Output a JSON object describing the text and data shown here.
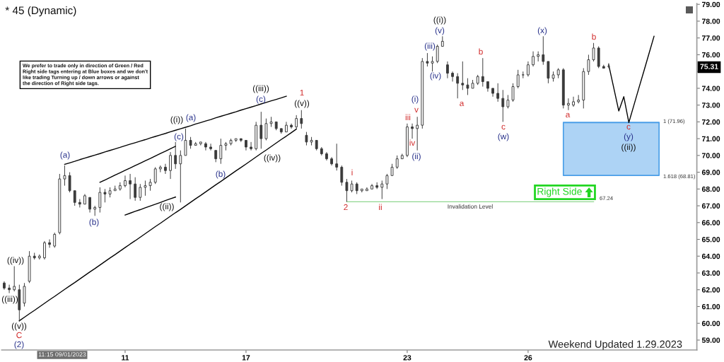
{
  "chart_data": {
    "type": "candlestick",
    "title": "* 45 (Dynamic)",
    "color": "#3a3a3a",
    "categories": [
      null,
      null,
      null,
      null,
      null,
      null,
      null,
      null,
      null,
      null,
      null,
      null,
      null,
      null,
      null,
      null,
      null,
      null,
      null,
      null,
      null,
      null,
      null,
      null,
      "11",
      null,
      null,
      null,
      null,
      null,
      null,
      null,
      null,
      null,
      null,
      null,
      null,
      null,
      null,
      null,
      null,
      null,
      null,
      null,
      null,
      null,
      null,
      null,
      "17",
      null,
      null,
      null,
      null,
      null,
      null,
      null,
      null,
      null,
      null,
      null,
      null,
      null,
      null,
      null,
      null,
      null,
      null,
      null,
      null,
      null,
      null,
      null,
      null,
      null,
      null,
      null,
      null,
      null,
      null,
      null,
      "23",
      null,
      null,
      null,
      null,
      null,
      null,
      null,
      null,
      null,
      null,
      null,
      null,
      null,
      null,
      null,
      null,
      null,
      null,
      null,
      null,
      null,
      null,
      null,
      "26",
      null,
      null,
      null,
      null,
      null,
      null,
      null,
      null,
      null,
      null,
      null,
      null,
      null,
      null,
      null,
      null,
      null,
      null,
      null,
      null,
      null,
      null,
      null,
      null,
      null,
      null,
      null,
      null,
      null,
      null,
      null,
      null,
      null
    ],
    "ohlc": [
      [
        62.4,
        62.5,
        62.0,
        62.1
      ],
      [
        62.1,
        62.3,
        61.8,
        62.0
      ],
      [
        62.0,
        63.4,
        61.9,
        62.2
      ],
      [
        62.0,
        62.3,
        60.1,
        60.8
      ],
      [
        61.2,
        62.4,
        61.0,
        62.2
      ],
      [
        62.5,
        64.3,
        62.4,
        64.0
      ],
      [
        64.0,
        64.2,
        63.8,
        63.9
      ],
      [
        63.9,
        64.1,
        63.8,
        64.0
      ],
      [
        63.9,
        64.9,
        63.8,
        64.8
      ],
      [
        64.8,
        65.0,
        64.5,
        64.7
      ],
      [
        64.6,
        65.4,
        64.5,
        65.3
      ],
      [
        65.4,
        68.9,
        65.3,
        68.6
      ],
      [
        68.6,
        69.4,
        68.2,
        68.8
      ],
      [
        68.8,
        69.0,
        67.8,
        67.9
      ],
      [
        67.9,
        67.9,
        67.0,
        67.2
      ],
      [
        67.2,
        67.4,
        66.9,
        67.1
      ],
      [
        67.1,
        67.7,
        67.1,
        67.6
      ],
      [
        67.5,
        67.5,
        66.6,
        66.8
      ],
      [
        66.8,
        67.0,
        66.4,
        66.9
      ],
      [
        66.9,
        68.1,
        66.6,
        67.8
      ],
      [
        67.8,
        68.0,
        67.2,
        67.7
      ],
      [
        67.7,
        68.1,
        67.5,
        67.9
      ],
      [
        67.9,
        68.2,
        67.9,
        68.0
      ],
      [
        68.0,
        68.4,
        67.9,
        68.2
      ],
      [
        68.2,
        68.8,
        68.1,
        68.5
      ],
      [
        68.5,
        68.9,
        67.4,
        68.3
      ],
      [
        68.3,
        68.7,
        67.3,
        67.5
      ],
      [
        67.5,
        68.3,
        67.3,
        68.1
      ],
      [
        68.1,
        68.5,
        67.6,
        68.2
      ],
      [
        68.2,
        68.6,
        67.9,
        68.4
      ],
      [
        68.4,
        69.3,
        68.3,
        69.2
      ],
      [
        69.2,
        69.4,
        69.0,
        69.3
      ],
      [
        69.3,
        69.5,
        68.9,
        69.1
      ],
      [
        69.1,
        70.2,
        68.6,
        70.0
      ],
      [
        70.0,
        70.8,
        69.2,
        69.5
      ],
      [
        69.5,
        70.3,
        67.2,
        70.0
      ],
      [
        70.0,
        71.6,
        70.0,
        70.9
      ],
      [
        70.9,
        71.1,
        70.4,
        70.6
      ],
      [
        70.6,
        70.8,
        70.6,
        70.7
      ],
      [
        70.7,
        70.8,
        70.6,
        70.8
      ],
      [
        70.7,
        70.8,
        70.3,
        70.5
      ],
      [
        70.5,
        70.7,
        70.3,
        70.4
      ],
      [
        70.3,
        70.3,
        69.6,
        69.8
      ],
      [
        69.8,
        71.0,
        69.5,
        70.6
      ],
      [
        70.6,
        70.8,
        70.3,
        70.7
      ],
      [
        70.7,
        71.0,
        70.6,
        70.9
      ],
      [
        70.9,
        71.0,
        70.8,
        71.0
      ],
      [
        71.0,
        71.0,
        70.8,
        70.9
      ],
      [
        70.9,
        70.9,
        70.3,
        70.5
      ],
      [
        70.5,
        70.8,
        70.3,
        70.4
      ],
      [
        70.4,
        72.0,
        70.3,
        71.8
      ],
      [
        71.8,
        72.6,
        70.4,
        71.0
      ],
      [
        71.0,
        72.2,
        70.9,
        71.9
      ],
      [
        71.9,
        72.3,
        71.7,
        72.0
      ],
      [
        72.0,
        72.0,
        71.5,
        71.6
      ],
      [
        71.6,
        71.6,
        71.3,
        71.4
      ],
      [
        71.4,
        72.0,
        71.4,
        71.8
      ],
      [
        71.8,
        71.9,
        71.6,
        71.7
      ],
      [
        71.7,
        72.4,
        71.6,
        72.2
      ],
      [
        72.2,
        72.7,
        71.6,
        71.9
      ],
      [
        71.2,
        71.4,
        70.6,
        70.8
      ],
      [
        70.8,
        71.1,
        70.6,
        70.9
      ],
      [
        70.9,
        70.9,
        70.3,
        70.4
      ],
      [
        70.4,
        70.5,
        70.0,
        70.1
      ],
      [
        70.1,
        70.2,
        69.7,
        69.8
      ],
      [
        69.8,
        69.9,
        69.4,
        69.5
      ],
      [
        69.5,
        70.7,
        69.1,
        69.3
      ],
      [
        69.3,
        69.4,
        68.2,
        68.4
      ],
      [
        68.4,
        68.6,
        67.24,
        67.9
      ],
      [
        67.9,
        68.5,
        67.8,
        68.3
      ],
      [
        68.3,
        68.4,
        67.7,
        67.9
      ],
      [
        67.9,
        68.0,
        67.8,
        68.0
      ],
      [
        67.9,
        68.1,
        67.9,
        68.0
      ],
      [
        68.0,
        68.3,
        68.0,
        68.2
      ],
      [
        68.2,
        68.4,
        68.0,
        68.1
      ],
      [
        68.1,
        68.5,
        67.4,
        68.3
      ],
      [
        68.3,
        68.9,
        68.0,
        68.8
      ],
      [
        68.8,
        69.5,
        68.8,
        69.3
      ],
      [
        69.3,
        70.0,
        69.2,
        69.8
      ],
      [
        69.8,
        70.1,
        69.8,
        70.0
      ],
      [
        70.0,
        71.9,
        69.9,
        71.7
      ],
      [
        71.7,
        71.9,
        71.0,
        71.6
      ],
      [
        71.6,
        72.3,
        70.3,
        71.8
      ],
      [
        71.8,
        75.8,
        71.6,
        75.6
      ],
      [
        75.6,
        76.1,
        75.3,
        75.5
      ],
      [
        75.5,
        75.9,
        75.0,
        75.6
      ],
      [
        75.6,
        76.6,
        75.5,
        76.5
      ],
      [
        76.5,
        77.1,
        76.5,
        76.8
      ],
      [
        75.4,
        75.6,
        74.6,
        74.9
      ],
      [
        74.9,
        75.0,
        74.4,
        74.7
      ],
      [
        74.7,
        74.9,
        73.4,
        74.3
      ],
      [
        74.3,
        75.6,
        73.9,
        74.2
      ],
      [
        74.2,
        74.6,
        73.6,
        74.0
      ],
      [
        74.0,
        74.5,
        74.0,
        74.3
      ],
      [
        74.3,
        74.8,
        74.2,
        74.7
      ],
      [
        74.7,
        75.8,
        74.1,
        74.4
      ],
      [
        74.4,
        74.4,
        73.8,
        74.0
      ],
      [
        74.0,
        74.0,
        73.5,
        73.7
      ],
      [
        73.7,
        74.3,
        73.2,
        73.4
      ],
      [
        73.4,
        73.9,
        72.0,
        72.9
      ],
      [
        72.9,
        73.6,
        72.8,
        73.3
      ],
      [
        73.3,
        74.3,
        73.2,
        74.1
      ],
      [
        74.1,
        75.1,
        74.0,
        74.8
      ],
      [
        74.8,
        75.0,
        74.6,
        74.8
      ],
      [
        74.8,
        75.6,
        74.7,
        75.4
      ],
      [
        75.4,
        76.2,
        75.3,
        75.9
      ],
      [
        75.9,
        76.2,
        75.6,
        76.0
      ],
      [
        76.0,
        77.1,
        75.4,
        75.6
      ],
      [
        75.6,
        75.6,
        74.3,
        74.6
      ],
      [
        74.6,
        75.0,
        74.4,
        74.8
      ],
      [
        74.8,
        75.2,
        74.6,
        75.1
      ],
      [
        75.1,
        75.2,
        72.8,
        73.0
      ],
      [
        73.0,
        73.4,
        72.7,
        73.1
      ],
      [
        73.0,
        73.5,
        72.9,
        73.2
      ],
      [
        73.2,
        73.6,
        73.1,
        73.3
      ],
      [
        73.3,
        75.2,
        72.8,
        75.0
      ],
      [
        75.0,
        76.0,
        74.8,
        75.7
      ],
      [
        75.7,
        76.7,
        75.6,
        76.4
      ],
      [
        76.4,
        76.5,
        75.2,
        75.3
      ],
      [
        75.3,
        75.4,
        75.2,
        75.2
      ],
      [
        75.3,
        75.5,
        75.2,
        75.31
      ],
      null,
      null,
      null,
      null,
      null,
      null,
      null,
      null,
      null,
      null,
      null,
      null,
      null,
      null,
      null,
      null,
      null
    ],
    "series": [
      {
        "type": "line",
        "color": "#4a9ee8",
        "values": [
          null,
          null,
          null,
          null,
          null,
          null,
          null,
          null,
          null,
          null,
          null,
          null,
          null,
          null,
          null,
          null,
          null,
          null,
          null,
          null,
          null,
          null,
          null,
          null,
          null,
          null,
          null,
          null,
          null,
          null,
          null,
          null,
          null,
          null,
          null,
          null,
          null,
          null,
          null,
          null,
          null,
          null,
          null,
          null,
          null,
          null,
          null,
          null,
          null,
          null,
          null,
          null,
          null,
          null,
          null,
          null,
          null,
          null,
          null,
          null,
          null,
          null,
          null,
          null,
          null,
          null,
          null,
          null,
          null,
          null,
          null,
          null,
          null,
          null,
          null,
          null,
          null,
          null,
          null,
          null,
          null,
          null,
          null,
          null,
          null,
          null,
          null,
          null,
          null,
          null,
          null,
          null,
          null,
          null,
          null,
          null,
          null,
          null,
          null,
          null,
          null,
          null,
          null,
          null,
          null,
          null,
          null,
          null,
          null,
          null,
          null,
          71.96,
          71.96,
          71.96,
          71.96,
          71.96,
          71.96,
          71.96,
          71.96,
          71.96,
          71.96,
          71.96,
          71.96,
          71.96,
          71.96,
          71.96,
          71.96,
          71.96,
          71.96,
          71.96,
          71.96,
          null,
          null,
          null,
          null,
          null,
          null,
          null
        ],
        "upper": [
          null,
          null,
          null,
          null,
          null,
          null,
          null,
          null,
          null,
          null,
          null,
          null,
          null,
          null,
          null,
          null,
          null,
          null,
          null,
          null,
          null,
          null,
          null,
          null,
          null,
          null,
          null,
          null,
          null,
          null,
          null,
          null,
          null,
          null,
          null,
          null,
          null,
          null,
          null,
          null,
          null,
          null,
          null,
          null,
          null,
          null,
          null,
          null,
          null,
          null,
          null,
          null,
          null,
          null,
          null,
          null,
          null,
          null,
          null,
          null,
          null,
          null,
          null,
          null,
          null,
          null,
          null,
          null,
          null,
          null,
          null,
          null,
          null,
          null,
          null,
          null,
          null,
          null,
          null,
          null,
          null,
          null,
          null,
          null,
          null,
          null,
          null,
          null,
          null,
          null,
          null,
          null,
          null,
          null,
          null,
          null,
          null,
          null,
          null,
          null,
          null,
          null,
          null,
          null,
          null,
          null,
          null,
          null,
          null,
          null,
          null,
          71.96,
          71.96,
          71.96,
          71.96,
          71.96,
          71.96,
          71.96,
          71.96,
          71.96,
          71.96,
          71.96,
          71.96,
          71.96,
          71.96,
          71.96,
          71.96,
          71.96,
          71.96,
          71.96,
          71.96,
          null,
          null,
          null,
          null,
          null,
          null,
          null
        ],
        "lower": [
          null,
          null,
          null,
          null,
          null,
          null,
          null,
          null,
          null,
          null,
          null,
          null,
          null,
          null,
          null,
          null,
          null,
          null,
          null,
          null,
          null,
          null,
          null,
          null,
          null,
          null,
          null,
          null,
          null,
          null,
          null,
          null,
          null,
          null,
          null,
          null,
          null,
          null,
          null,
          null,
          null,
          null,
          null,
          null,
          null,
          null,
          null,
          null,
          null,
          null,
          null,
          null,
          null,
          null,
          null,
          null,
          null,
          null,
          null,
          null,
          null,
          null,
          null,
          null,
          null,
          null,
          null,
          null,
          null,
          null,
          null,
          null,
          null,
          null,
          null,
          null,
          null,
          null,
          null,
          null,
          null,
          null,
          null,
          null,
          null,
          null,
          null,
          null,
          null,
          null,
          null,
          null,
          null,
          null,
          null,
          null,
          null,
          null,
          null,
          null,
          null,
          null,
          null,
          null,
          null,
          null,
          null,
          null,
          null,
          null,
          null,
          68.81,
          68.81,
          68.81,
          68.81,
          68.81,
          68.81,
          68.81,
          68.81,
          68.81,
          68.81,
          68.81,
          68.81,
          68.81,
          68.81,
          68.81,
          68.81,
          68.81,
          68.81,
          68.81,
          68.81,
          null,
          null,
          null,
          null,
          null,
          null,
          null
        ]
      },
      {
        "type": "line",
        "color": "#000000",
        "values": [
          null,
          null,
          null,
          null,
          null,
          null,
          null,
          null,
          null,
          null,
          null,
          null,
          69.47,
          69.56,
          69.65,
          69.75,
          69.84,
          69.93,
          70.02,
          70.11,
          70.21,
          70.3,
          70.39,
          70.48,
          70.58,
          70.67,
          70.76,
          70.85,
          70.94,
          71.04,
          71.13,
          71.22,
          71.31,
          71.41,
          71.5,
          71.59,
          71.68,
          71.77,
          71.87,
          71.96,
          72.05,
          72.14,
          72.24,
          72.33,
          72.42,
          72.51,
          72.6,
          72.7,
          72.79,
          72.88,
          72.97,
          73.07,
          73.16,
          73.25,
          73.34,
          73.43,
          73.53,
          null,
          null,
          null,
          null,
          null,
          null,
          null,
          null,
          null,
          null,
          null,
          null,
          null,
          null,
          null,
          null,
          null,
          null,
          null,
          null,
          null,
          null,
          null,
          null,
          null,
          null,
          null,
          null,
          null,
          null,
          null,
          null,
          null,
          null,
          null,
          null,
          null,
          null,
          null,
          null,
          null,
          null,
          null,
          null,
          null,
          null,
          null,
          null,
          null,
          null,
          null,
          null,
          null,
          null,
          null,
          null,
          null,
          null,
          null,
          null,
          null,
          null,
          null,
          null,
          null,
          null,
          null,
          null,
          null,
          null,
          null,
          null,
          null,
          null,
          null,
          null,
          null,
          null,
          null,
          null,
          null
        ]
      },
      {
        "type": "line",
        "color": "#000000",
        "values": [
          null,
          null,
          null,
          null,
          null,
          null,
          null,
          null,
          null,
          null,
          null,
          null,
          null,
          null,
          null,
          null,
          null,
          null,
          null,
          68.4,
          68.54,
          68.68,
          68.83,
          68.97,
          69.11,
          69.25,
          69.4,
          69.54,
          69.68,
          69.82,
          69.97,
          70.11,
          70.25,
          70.4,
          70.54,
          null,
          null,
          null,
          null,
          null,
          null,
          null,
          null,
          null,
          null,
          null,
          null,
          null,
          null,
          null,
          null,
          null,
          null,
          null,
          null,
          null,
          null,
          null,
          null,
          null,
          null,
          null,
          null,
          null,
          null,
          null,
          null,
          null,
          null,
          null,
          null,
          null,
          null,
          null,
          null,
          null,
          null,
          null,
          null,
          null,
          null,
          null,
          null,
          null,
          null,
          null,
          null,
          null,
          null,
          null,
          null,
          null,
          null,
          null,
          null,
          null,
          null,
          null,
          null,
          null,
          null,
          null,
          null,
          null,
          null,
          null,
          null,
          null,
          null,
          null,
          null,
          null,
          null,
          null,
          null,
          null,
          null,
          null,
          null,
          null,
          null,
          null,
          null,
          null,
          null,
          null,
          null,
          null,
          null,
          null,
          null,
          null,
          null,
          null,
          null,
          null,
          null,
          null
        ]
      },
      {
        "type": "line",
        "color": "#000000",
        "values": [
          null,
          null,
          null,
          null,
          null,
          null,
          null,
          null,
          null,
          null,
          null,
          null,
          null,
          null,
          null,
          null,
          null,
          null,
          null,
          null,
          null,
          null,
          null,
          null,
          66.45,
          66.56,
          66.67,
          66.77,
          66.88,
          66.99,
          67.09,
          67.2,
          67.31,
          67.42,
          67.52,
          null,
          null,
          null,
          null,
          null,
          null,
          null,
          null,
          null,
          null,
          null,
          null,
          null,
          null,
          null,
          null,
          null,
          null,
          null,
          null,
          null,
          null,
          null,
          null,
          null,
          null,
          null,
          null,
          null,
          null,
          null,
          null,
          null,
          null,
          null,
          null,
          null,
          null,
          null,
          null,
          null,
          null,
          null,
          null,
          null,
          null,
          null,
          null,
          null,
          null,
          null,
          null,
          null,
          null,
          null,
          null,
          null,
          null,
          null,
          null,
          null,
          null,
          null,
          null,
          null,
          null,
          null,
          null,
          null,
          null,
          null,
          null,
          null,
          null,
          null,
          null,
          null,
          null,
          null,
          null,
          null,
          null,
          null,
          null,
          null,
          null,
          null,
          null,
          null,
          null,
          null,
          null,
          null,
          null,
          null,
          null,
          null,
          null,
          null,
          null,
          null,
          null,
          null
        ]
      },
      {
        "type": "line",
        "color": "#000000",
        "values": [
          null,
          null,
          null,
          60.15,
          60.36,
          60.57,
          60.77,
          60.98,
          61.19,
          61.4,
          61.6,
          61.81,
          62.02,
          62.23,
          62.43,
          62.64,
          62.85,
          63.06,
          63.26,
          63.47,
          63.68,
          63.89,
          64.09,
          64.3,
          64.51,
          64.72,
          64.92,
          65.13,
          65.34,
          65.55,
          65.76,
          65.96,
          66.17,
          66.38,
          66.59,
          66.79,
          67.0,
          67.21,
          67.42,
          67.62,
          67.83,
          68.04,
          68.25,
          68.45,
          68.66,
          68.87,
          69.08,
          69.28,
          69.49,
          69.7,
          69.91,
          70.12,
          70.32,
          70.53,
          70.74,
          70.95,
          71.15,
          71.36,
          71.57,
          null,
          null,
          null,
          null,
          null,
          null,
          null,
          null,
          null,
          null,
          null,
          null,
          null,
          null,
          null,
          null,
          null,
          null,
          null,
          null,
          null,
          null,
          null,
          null,
          null,
          null,
          null,
          null,
          null,
          null,
          null,
          null,
          null,
          null,
          null,
          null,
          null,
          null,
          null,
          null,
          null,
          null,
          null,
          null,
          null,
          null,
          null,
          null,
          null,
          null,
          null,
          null,
          null,
          null,
          null,
          null,
          null,
          null,
          null,
          null,
          null,
          null,
          null,
          null,
          null,
          null,
          null,
          null,
          null,
          null,
          null,
          null,
          null,
          null,
          null,
          null,
          null,
          null,
          null
        ]
      },
      {
        "type": "line",
        "name": "Invalidation Level",
        "color": "#8fd68f",
        "values": [
          null,
          null,
          null,
          null,
          null,
          null,
          null,
          null,
          null,
          null,
          null,
          null,
          null,
          null,
          null,
          null,
          null,
          null,
          null,
          null,
          null,
          null,
          null,
          null,
          null,
          null,
          null,
          null,
          null,
          null,
          null,
          null,
          null,
          null,
          null,
          null,
          null,
          null,
          null,
          null,
          null,
          null,
          null,
          null,
          null,
          null,
          null,
          null,
          null,
          null,
          null,
          null,
          null,
          null,
          null,
          null,
          null,
          null,
          null,
          null,
          null,
          null,
          null,
          null,
          null,
          null,
          null,
          null,
          67.24,
          67.24,
          67.24,
          67.24,
          67.24,
          67.24,
          67.24,
          67.24,
          67.24,
          67.24,
          67.24,
          67.24,
          67.24,
          67.24,
          67.24,
          67.24,
          67.24,
          67.24,
          67.24,
          67.24,
          67.24,
          67.24,
          67.24,
          67.24,
          67.24,
          67.24,
          67.24,
          67.24,
          67.24,
          67.24,
          67.24,
          67.24,
          67.24,
          67.24,
          67.24,
          67.24,
          67.24,
          67.24,
          67.24,
          67.24,
          67.24,
          67.24,
          67.24,
          67.24,
          67.24,
          67.24,
          67.24,
          67.24,
          67.24,
          67.24,
          null,
          null,
          null,
          null,
          null,
          null,
          null,
          null,
          null,
          null,
          null,
          null,
          null,
          null,
          null,
          null,
          null,
          null,
          null,
          null
        ]
      },
      {
        "type": "line",
        "color": "#000000",
        "values": [
          null,
          null,
          null,
          null,
          null,
          null,
          null,
          null,
          null,
          null,
          null,
          null,
          null,
          null,
          null,
          null,
          null,
          null,
          null,
          null,
          null,
          null,
          null,
          null,
          null,
          null,
          null,
          null,
          null,
          null,
          null,
          null,
          null,
          null,
          null,
          null,
          null,
          null,
          null,
          null,
          null,
          null,
          null,
          null,
          null,
          null,
          null,
          null,
          null,
          null,
          null,
          null,
          null,
          null,
          null,
          null,
          null,
          null,
          null,
          null,
          null,
          null,
          null,
          null,
          null,
          null,
          null,
          null,
          null,
          null,
          null,
          null,
          null,
          null,
          null,
          null,
          null,
          null,
          null,
          null,
          null,
          null,
          null,
          null,
          null,
          null,
          null,
          null,
          null,
          null,
          null,
          null,
          null,
          null,
          null,
          null,
          null,
          null,
          null,
          null,
          null,
          null,
          null,
          null,
          null,
          null,
          null,
          null,
          null,
          null,
          null,
          null,
          null,
          null,
          null,
          null,
          null,
          null,
          null,
          null,
          75.4,
          74.03,
          72.65,
          73.5,
          71.96,
          72.99,
          74.02,
          75.04,
          76.07,
          77.1,
          null,
          null,
          null,
          null,
          null,
          null,
          null,
          null
        ]
      }
    ],
    "ylim": [
      58.41,
      79.05
    ],
    "yticks": [
      {
        "value": 59,
        "label": "59.00"
      },
      {
        "value": 60,
        "label": "60.00"
      },
      {
        "value": 61,
        "label": "61.00"
      },
      {
        "value": 62,
        "label": "62.00"
      },
      {
        "value": 63,
        "label": "63.00"
      },
      {
        "value": 64,
        "label": "64.00"
      },
      {
        "value": 65,
        "label": "65.00"
      },
      {
        "value": 66,
        "label": "66.00"
      },
      {
        "value": 67,
        "label": "67.00"
      },
      {
        "value": 68,
        "label": "68.00"
      },
      {
        "value": 69,
        "label": "69.00"
      },
      {
        "value": 70,
        "label": "70.00"
      },
      {
        "value": 71,
        "label": "71.00"
      },
      {
        "value": 72,
        "label": "72.00"
      },
      {
        "value": 73,
        "label": "73.00"
      },
      {
        "value": 74,
        "label": "74.00"
      },
      {
        "value": 75,
        "label": null
      },
      {
        "value": 76,
        "label": "76.00"
      },
      {
        "value": 77,
        "label": "77.00"
      },
      {
        "value": 78,
        "label": "78.00"
      },
      {
        "value": 79,
        "label": "79.00"
      }
    ],
    "annotations": [
      "We prefer to trade only in direction of Green / Red\nRight side tags entering at Blue boxes and we don't\nlike trading Turning up / down arrows or against\nthe direction of Right side tags.",
      "Right Side",
      "11:15 09/01/2023",
      "Weekend Updated 1.29.2023",
      "75.31",
      "1 (71.96)",
      "1.618 (68.81)",
      "67.24",
      "((iv))",
      "((iii))",
      "((v))",
      "((i))",
      "((ii))",
      "((iii))",
      "((iv))",
      "((v))",
      "((i))",
      "((ii))",
      "(2)",
      "(a)",
      "(b)",
      "(c)",
      "(a)",
      "(b)",
      "(c)",
      "(i)",
      "(ii)",
      "(iii)",
      "(iv)",
      "(v)",
      "(w)",
      "(x)",
      "(y)",
      "C",
      "1",
      "2",
      "i",
      "ii",
      "iii",
      "iv",
      "v",
      "a",
      "b",
      "c",
      "a",
      "b",
      "c"
    ]
  }
}
